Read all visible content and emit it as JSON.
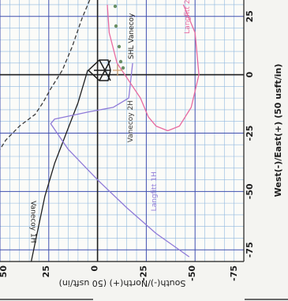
{
  "chart_data": {
    "type": "line",
    "xlabel": "South(-)/North(+) (50 usft/in)",
    "ylabel": "West(-)/East(+) (50 usft/in)",
    "xlim": [
      50,
      -75
    ],
    "ylim": [
      32,
      -80
    ],
    "x_ticks": [
      "50",
      "25",
      "0",
      "-25",
      "-50",
      "-75"
    ],
    "y_ticks": [
      "25",
      "0",
      "-25",
      "-50",
      "-75"
    ],
    "grid": true,
    "surface_label": "SHL Vanecoy",
    "series": [
      {
        "name": "Vanecoy 1H",
        "color": "#1f1f1f",
        "style": "solid",
        "points": [
          [
            5,
            2
          ],
          [
            10,
            -12
          ],
          [
            16,
            -25
          ],
          [
            22,
            -38
          ],
          [
            27,
            -52
          ],
          [
            31,
            -68
          ],
          [
            34,
            -80
          ]
        ]
      },
      {
        "name": "Vanecoy 2H",
        "color": "#3a3a3a",
        "style": "dash",
        "points": [
          [
            4,
            32
          ],
          [
            8,
            24
          ],
          [
            13,
            12
          ],
          [
            18,
            2
          ],
          [
            24,
            -6
          ],
          [
            28,
            -12
          ],
          [
            32,
            -17
          ],
          [
            40,
            -22
          ],
          [
            47,
            -28
          ],
          [
            50,
            -32
          ]
        ]
      },
      {
        "name": "Langfitt 1H",
        "color": "#8f7ad8",
        "style": "solid",
        "points": [
          [
            -18,
            5
          ],
          [
            -16,
            -10
          ],
          [
            -8,
            -14
          ],
          [
            5,
            -16
          ],
          [
            22,
            -19
          ],
          [
            24,
            -21
          ],
          [
            15,
            -32
          ],
          [
            0,
            -45
          ],
          [
            -15,
            -57
          ],
          [
            -30,
            -68
          ],
          [
            -47,
            -78
          ]
        ]
      },
      {
        "name": "Langfitt 2H",
        "color": "#e86aa0",
        "style": "solid",
        "points": [
          [
            -5,
            30
          ],
          [
            -6,
            18
          ],
          [
            -10,
            5
          ],
          [
            -22,
            -10
          ],
          [
            -26,
            -18
          ],
          [
            -30,
            -22
          ],
          [
            -36,
            -24
          ],
          [
            -42,
            -22
          ],
          [
            -48,
            -14
          ],
          [
            -52,
            0
          ],
          [
            -50,
            18
          ],
          [
            -44,
            30
          ]
        ]
      }
    ],
    "annotations": [
      {
        "text": "Vanecoy 1H",
        "x": 34,
        "y": -63
      },
      {
        "text": "Vanecoy 2H",
        "x": -18,
        "y": -20
      },
      {
        "text": "Langfitt 1H",
        "x": -30,
        "y": -50
      },
      {
        "text": "Langfitt 2H",
        "x": -47,
        "y": 26
      }
    ]
  }
}
